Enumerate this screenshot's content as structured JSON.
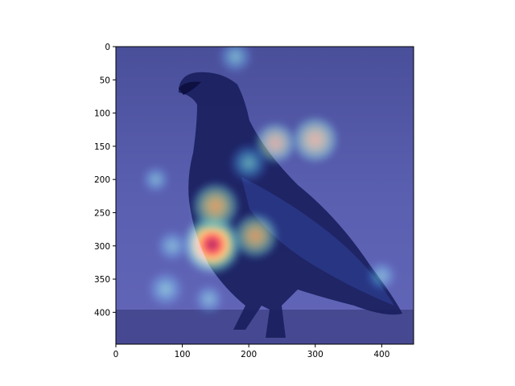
{
  "figure": {
    "image_description": "",
    "xlim": [
      0,
      448
    ],
    "ylim": [
      448,
      0
    ],
    "x_ticks": [
      0,
      100,
      200,
      300,
      400
    ],
    "y_ticks": [
      0,
      50,
      100,
      150,
      200,
      250,
      300,
      350,
      400
    ],
    "x_tick_labels": [
      "0",
      "100",
      "200",
      "300",
      "400"
    ],
    "y_tick_labels": [
      "0",
      "50",
      "100",
      "150",
      "200",
      "250",
      "300",
      "350",
      "400"
    ],
    "colormap": "jet",
    "colors": {
      "background": "#5a5fa8",
      "bird": "#1a1f5e",
      "axis": "#000000"
    },
    "heat_spots": [
      {
        "x": 145,
        "y": 298,
        "value": 1.0
      },
      {
        "x": 150,
        "y": 240,
        "value": 0.75
      },
      {
        "x": 210,
        "y": 285,
        "value": 0.7
      },
      {
        "x": 300,
        "y": 140,
        "value": 0.72
      },
      {
        "x": 240,
        "y": 145,
        "value": 0.6
      },
      {
        "x": 200,
        "y": 175,
        "value": 0.55
      },
      {
        "x": 180,
        "y": 15,
        "value": 0.45
      },
      {
        "x": 75,
        "y": 365,
        "value": 0.5
      },
      {
        "x": 85,
        "y": 300,
        "value": 0.4
      },
      {
        "x": 140,
        "y": 380,
        "value": 0.35
      },
      {
        "x": 400,
        "y": 345,
        "value": 0.35
      },
      {
        "x": 60,
        "y": 200,
        "value": 0.3
      }
    ]
  }
}
